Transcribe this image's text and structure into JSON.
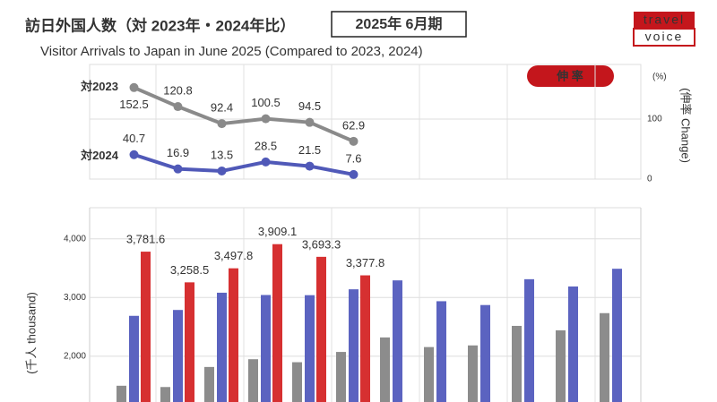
{
  "header": {
    "title": "訪日外国人数（対 2023年・2024年比）",
    "period": "2025年 6月期",
    "subtitle": "Visitor Arrivals to Japan in June 2025 (Compared to 2023, 2024)"
  },
  "logo": {
    "top": "travel",
    "bottom": "voice"
  },
  "chart_data": [
    {
      "type": "line",
      "badge": "伸 率",
      "y_unit": "(%)",
      "y_label": "(伸率 Change)",
      "categories": [
        null,
        null,
        null,
        null,
        null,
        null,
        null,
        null,
        null,
        null,
        null,
        null
      ],
      "series": [
        {
          "name": "対2023",
          "color": "#8a8a8a",
          "values": [
            152.5,
            120.8,
            92.4,
            100.5,
            94.5,
            62.9,
            null,
            null,
            null,
            null,
            null,
            null
          ]
        },
        {
          "name": "対2024",
          "color": "#5059b8",
          "values": [
            40.7,
            16.9,
            13.5,
            28.5,
            21.5,
            7.6,
            null,
            null,
            null,
            null,
            null,
            null
          ]
        }
      ],
      "ylim": [
        0,
        191
      ],
      "yticks": [
        0,
        100
      ],
      "grid": true
    },
    {
      "type": "bar",
      "y_label": "(千人 thousand)",
      "categories": [
        null,
        null,
        null,
        null,
        null,
        null,
        null,
        null,
        null,
        null,
        null,
        null
      ],
      "series": [
        {
          "color": "#8c8c8c",
          "values": [
            1497,
            1475,
            1817,
            1949,
            1898,
            2073,
            2320,
            2156,
            2184,
            2517,
            2441,
            2734
          ]
        },
        {
          "color": "#5b63c0",
          "values": [
            2688,
            2788,
            3082,
            3043,
            3040,
            3140,
            3292,
            2937,
            2872,
            3312,
            3188,
            3490
          ]
        },
        {
          "color": "#d63031",
          "values": [
            3781.6,
            3258.5,
            3497.8,
            3909.1,
            3693.3,
            3377.8,
            null,
            null,
            null,
            null,
            null,
            null
          ],
          "value_labels": [
            "3,781.6",
            "3,258.5",
            "3,497.8",
            "3,909.1",
            "3,693.3",
            "3,377.8",
            null,
            null,
            null,
            null,
            null,
            null
          ]
        }
      ],
      "ylim": [
        1220,
        4530
      ],
      "yticks": [
        {
          "value": 2000,
          "label": "2,000"
        },
        {
          "value": 3000,
          "label": "3,000"
        },
        {
          "value": 4000,
          "label": "4,000"
        }
      ],
      "grid": true
    }
  ]
}
